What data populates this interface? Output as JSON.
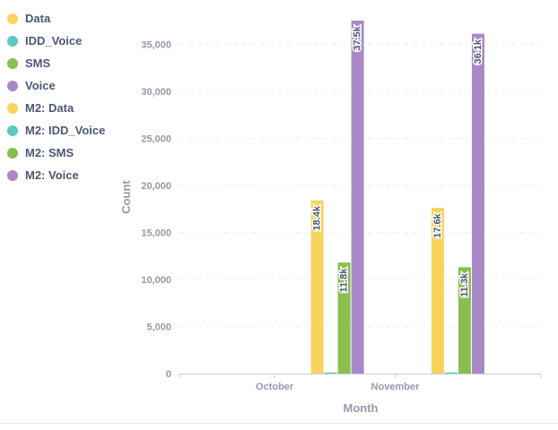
{
  "chart_data": {
    "type": "bar",
    "categories": [
      "October",
      "November"
    ],
    "series": [
      {
        "name": "Data",
        "color": "#f9d45c",
        "values": [
          null,
          null
        ]
      },
      {
        "name": "IDD_Voice",
        "color": "#5fc7c1",
        "values": [
          null,
          null
        ]
      },
      {
        "name": "SMS",
        "color": "#88bf4d",
        "values": [
          null,
          null
        ]
      },
      {
        "name": "Voice",
        "color": "#a989c5",
        "values": [
          null,
          null
        ]
      },
      {
        "name": "M2: Data",
        "color": "#f9d45c",
        "values": [
          18400,
          17600
        ],
        "labels": [
          "18.4k",
          "17.6k"
        ]
      },
      {
        "name": "M2: IDD_Voice",
        "color": "#5fc7c1",
        "values": [
          120,
          120
        ],
        "labels": [
          "",
          ""
        ]
      },
      {
        "name": "M2: SMS",
        "color": "#88bf4d",
        "values": [
          11800,
          11300
        ],
        "labels": [
          "11.8k",
          "11.3k"
        ]
      },
      {
        "name": "M2: Voice",
        "color": "#a989c5",
        "values": [
          37500,
          36100
        ],
        "labels": [
          "37.5k",
          "36.1k"
        ]
      }
    ],
    "xlabel": "Month",
    "ylabel": "Count",
    "ylim": [
      0,
      37500
    ],
    "yticks": [
      0,
      5000,
      10000,
      15000,
      20000,
      25000,
      30000,
      35000
    ],
    "ytick_labels": [
      "0",
      "5,000",
      "10,000",
      "15,000",
      "20,000",
      "25,000",
      "30,000",
      "35,000"
    ],
    "grid": true,
    "legend_position": "left"
  }
}
